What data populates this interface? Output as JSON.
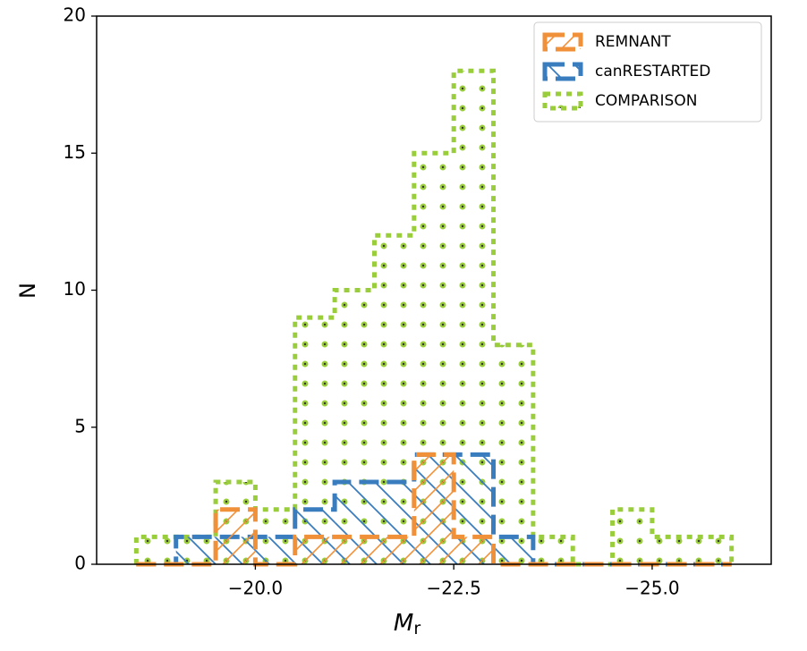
{
  "chart_data": {
    "type": "histogram",
    "x_label": "M",
    "x_label_sub": "r",
    "y_label": "N",
    "bins": [
      -18.5,
      -19.0,
      -19.5,
      -20.0,
      -20.5,
      -21.0,
      -21.5,
      -22.0,
      -22.5,
      -23.0,
      -23.5,
      -24.0,
      -24.5,
      -25.0,
      -25.5,
      -26.0
    ],
    "series": [
      {
        "name": "COMPARISON",
        "color": "#9acd3c",
        "style": "dotted",
        "hatch": "dots",
        "values": [
          1,
          1,
          3,
          2,
          9,
          10,
          12,
          15,
          18,
          8,
          1,
          0,
          2,
          1,
          1
        ]
      },
      {
        "name": "canRESTARTED",
        "color": "#3a7dbf",
        "style": "dashed",
        "hatch": "backslash",
        "values": [
          0,
          1,
          1,
          1,
          2,
          3,
          3,
          4,
          4,
          1,
          0,
          0,
          0,
          0,
          0
        ]
      },
      {
        "name": "REMNANT",
        "color": "#f0913a",
        "style": "dashed",
        "hatch": "slash",
        "values": [
          0,
          0,
          2,
          0,
          1,
          1,
          1,
          4,
          1,
          0,
          0,
          0,
          0,
          0,
          0
        ]
      }
    ],
    "legend_order": [
      2,
      1,
      0
    ],
    "legend": "upper right",
    "xlim": [
      -18.0,
      -26.5
    ],
    "ylim": [
      0,
      20
    ],
    "xticks": [
      {
        "value": -20.0,
        "label": "−20.0"
      },
      {
        "value": -22.5,
        "label": "−22.5"
      },
      {
        "value": -25.0,
        "label": "−25.0"
      }
    ],
    "yticks": [
      0,
      5,
      10,
      15,
      20
    ]
  }
}
